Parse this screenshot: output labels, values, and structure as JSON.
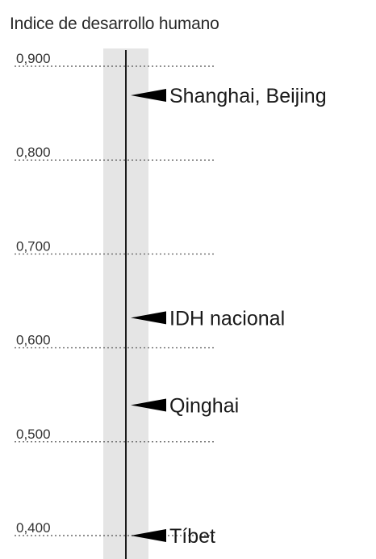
{
  "chart_data": {
    "type": "scatter",
    "title": "Indice de desarrollo humano",
    "ylim": [
      0.4,
      0.9
    ],
    "yticks": [
      {
        "value": 0.9,
        "label": "0,900"
      },
      {
        "value": 0.8,
        "label": "0,800"
      },
      {
        "value": 0.7,
        "label": "0,700"
      },
      {
        "value": 0.6,
        "label": "0,600"
      },
      {
        "value": 0.5,
        "label": "0,500"
      },
      {
        "value": 0.4,
        "label": "0,400"
      }
    ],
    "points": [
      {
        "label": "Shanghai, Beijing",
        "value": 0.869
      },
      {
        "label": "IDH nacional",
        "value": 0.632
      },
      {
        "label": "Qinghai",
        "value": 0.539
      },
      {
        "label": "Tíbet",
        "value": 0.4
      }
    ],
    "grid": true
  },
  "colors": {
    "axis": "#1a1a1a",
    "band": "#dcdcdc",
    "grid": "#6b6b6b",
    "marker": "#000000"
  }
}
